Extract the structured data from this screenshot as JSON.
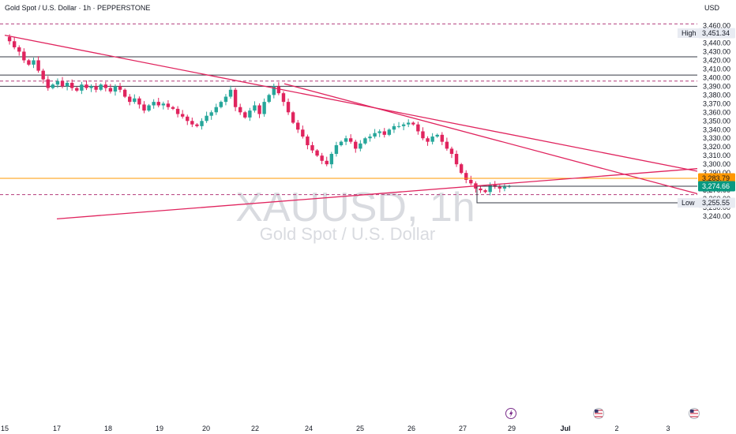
{
  "header": {
    "title": "Gold Spot / U.S. Dollar · 1h · PEPPERSTONE",
    "currency": "USD"
  },
  "watermark": {
    "symbol": "XAUUSD, 1h",
    "description": "Gold Spot / U.S. Dollar"
  },
  "colors": {
    "up": "#26a69a",
    "down": "#e0245e",
    "trendline": "#e0245e",
    "level_line": "#363a45",
    "orange_line": "#ff9800",
    "current_price": "#089981",
    "dashed_line": "#b23a7a"
  },
  "chart_data": {
    "type": "candlestick",
    "x_tick_labels": [
      "15",
      "17",
      "18",
      "19",
      "20",
      "22",
      "24",
      "25",
      "26",
      "27",
      "29",
      "Jul",
      "2",
      "3"
    ],
    "y_tick_labels": [
      "3,460.00",
      "3,450.00",
      "3,440.00",
      "3,430.00",
      "3,420.00",
      "3,410.00",
      "3,400.00",
      "3,390.00",
      "3,380.00",
      "3,370.00",
      "3,360.00",
      "3,350.00",
      "3,340.00",
      "3,330.00",
      "3,320.00",
      "3,310.00",
      "3,300.00",
      "3,290.00",
      "3,280.00",
      "3,270.00",
      "3,260.00",
      "3,250.00",
      "3,240.00"
    ],
    "ylim": [
      3236,
      3465
    ],
    "close_path": [
      3447,
      3442,
      3435,
      3430,
      3420,
      3415,
      3420,
      3408,
      3398,
      3388,
      3392,
      3396,
      3390,
      3394,
      3388,
      3385,
      3392,
      3388,
      3390,
      3386,
      3392,
      3388,
      3384,
      3390,
      3386,
      3378,
      3372,
      3376,
      3369,
      3362,
      3368,
      3372,
      3368,
      3370,
      3366,
      3364,
      3358,
      3355,
      3350,
      3346,
      3344,
      3350,
      3356,
      3360,
      3366,
      3372,
      3378,
      3386,
      3366,
      3360,
      3354,
      3362,
      3368,
      3358,
      3372,
      3380,
      3390,
      3382,
      3372,
      3360,
      3348,
      3340,
      3332,
      3322,
      3316,
      3310,
      3304,
      3300,
      3312,
      3322,
      3326,
      3330,
      3326,
      3318,
      3324,
      3330,
      3332,
      3336,
      3338,
      3334,
      3340,
      3344,
      3344,
      3346,
      3348,
      3346,
      3338,
      3330,
      3326,
      3332,
      3334,
      3326,
      3318,
      3312,
      3300,
      3290,
      3282,
      3278,
      3272,
      3270,
      3268,
      3276,
      3274,
      3272,
      3274,
      3275
    ],
    "price_levels": [
      {
        "label": "High",
        "value": "3,451.34"
      },
      {
        "label": "",
        "value": "3,283.79"
      },
      {
        "label": "",
        "value": "3,274.66"
      },
      {
        "label": "Low",
        "value": "3,255.55"
      }
    ],
    "horizontal_lines": [
      3424,
      3403,
      3390
    ],
    "dashed_lines": [
      3462,
      3396,
      3265
    ],
    "trendlines": [
      {
        "from": [
          "15",
          3449
        ],
        "to": [
          "3",
          3292
        ]
      },
      {
        "from": [
          "23",
          3393
        ],
        "to": [
          "3",
          3266
        ]
      },
      {
        "from": [
          "17",
          3237
        ],
        "to": [
          "3",
          3295
        ]
      }
    ],
    "events": [
      {
        "date": "29",
        "icon": "lightning-icon"
      },
      {
        "date": "1",
        "icon": "us-flag-icon"
      },
      {
        "date": "3",
        "icon": "us-flag-icon"
      }
    ],
    "grid": false
  }
}
